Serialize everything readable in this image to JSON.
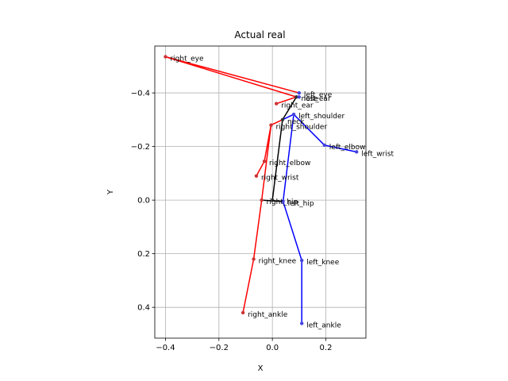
{
  "chart_data": {
    "type": "scatter",
    "title": "Actual real",
    "xlabel": "X",
    "ylabel": "Y",
    "xlim": [
      -0.44,
      0.35
    ],
    "ylim": [
      -0.575,
      0.515
    ],
    "y_inverted": true,
    "grid": true,
    "xticks": [
      -0.4,
      -0.2,
      0.0,
      0.2
    ],
    "xtick_labels": [
      "−0.4",
      "−0.2",
      "0.0",
      "0.2"
    ],
    "yticks": [
      -0.4,
      -0.2,
      0.0,
      0.2,
      0.4
    ],
    "ytick_labels": [
      "−0.4",
      "−0.2",
      "0.0",
      "0.2",
      "0.4"
    ],
    "colors": {
      "left": "#0000ff",
      "right": "#ff0000",
      "center": "#000000"
    },
    "keypoints": [
      {
        "name": "nose",
        "x": 0.09,
        "y": -0.385
      },
      {
        "name": "left_eye",
        "x": 0.1,
        "y": -0.4
      },
      {
        "name": "right_eye",
        "x": -0.4,
        "y": -0.535
      },
      {
        "name": "left_ear",
        "x": 0.1,
        "y": -0.385
      },
      {
        "name": "right_ear",
        "x": 0.015,
        "y": -0.36
      },
      {
        "name": "left_shoulder",
        "x": 0.08,
        "y": -0.32
      },
      {
        "name": "right_shoulder",
        "x": -0.005,
        "y": -0.28
      },
      {
        "name": "neck",
        "x": 0.038,
        "y": -0.3
      },
      {
        "name": "left_elbow",
        "x": 0.195,
        "y": -0.205
      },
      {
        "name": "right_elbow",
        "x": -0.03,
        "y": -0.145
      },
      {
        "name": "left_wrist",
        "x": 0.315,
        "y": -0.18
      },
      {
        "name": "right_wrist",
        "x": -0.06,
        "y": -0.09
      },
      {
        "name": "left_hip",
        "x": 0.04,
        "y": 0.005
      },
      {
        "name": "right_hip",
        "x": -0.04,
        "y": 0.0
      },
      {
        "name": "left_knee",
        "x": 0.11,
        "y": 0.225
      },
      {
        "name": "right_knee",
        "x": -0.07,
        "y": 0.22
      },
      {
        "name": "left_ankle",
        "x": 0.11,
        "y": 0.46
      },
      {
        "name": "right_ankle",
        "x": -0.11,
        "y": 0.42
      },
      {
        "name": "mid_hip",
        "x": 0.0,
        "y": 0.0
      }
    ],
    "bones": [
      {
        "from": "right_eye",
        "to": "left_eye",
        "side": "right"
      },
      {
        "from": "right_eye",
        "to": "nose",
        "side": "right"
      },
      {
        "from": "nose",
        "to": "right_ear",
        "side": "right"
      },
      {
        "from": "nose",
        "to": "left_ear",
        "side": "left"
      },
      {
        "from": "neck",
        "to": "nose",
        "side": "center"
      },
      {
        "from": "neck",
        "to": "mid_hip",
        "side": "center"
      },
      {
        "from": "neck",
        "to": "right_shoulder",
        "side": "right"
      },
      {
        "from": "right_shoulder",
        "to": "right_elbow",
        "side": "right"
      },
      {
        "from": "right_elbow",
        "to": "right_wrist",
        "side": "right"
      },
      {
        "from": "neck",
        "to": "left_shoulder",
        "side": "left"
      },
      {
        "from": "left_shoulder",
        "to": "left_elbow",
        "side": "left"
      },
      {
        "from": "left_elbow",
        "to": "left_wrist",
        "side": "left"
      },
      {
        "from": "left_shoulder",
        "to": "left_hip",
        "side": "left"
      },
      {
        "from": "left_hip",
        "to": "left_knee",
        "side": "left"
      },
      {
        "from": "left_knee",
        "to": "left_ankle",
        "side": "left"
      },
      {
        "from": "right_shoulder",
        "to": "right_hip",
        "side": "right"
      },
      {
        "from": "right_hip",
        "to": "right_knee",
        "side": "right"
      },
      {
        "from": "right_knee",
        "to": "right_ankle",
        "side": "right"
      },
      {
        "from": "right_hip",
        "to": "left_hip",
        "side": "center"
      }
    ]
  }
}
